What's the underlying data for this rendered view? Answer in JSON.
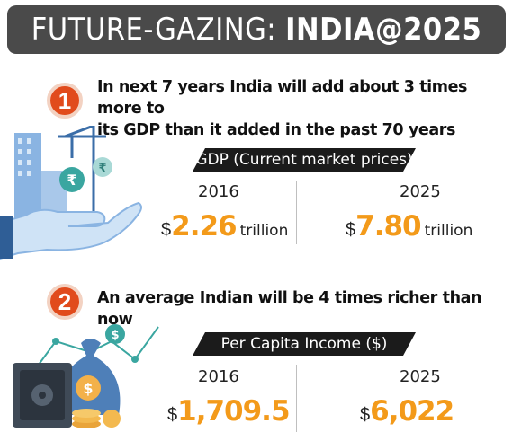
{
  "header": {
    "title_light": "FUTURE-GAZING:",
    "title_bold": "INDIA@2025"
  },
  "points": [
    {
      "number": "1",
      "text_line1": "In next 7 years India will add about 3 times more to",
      "text_line2": "its GDP than it added in the past 70 years",
      "metric": "GDP (Current market prices)",
      "left": {
        "year": "2016",
        "currency": "$",
        "value": "2.26",
        "unit": "trillion"
      },
      "right": {
        "year": "2025",
        "currency": "$",
        "value": "7.80",
        "unit": "trillion"
      }
    },
    {
      "number": "2",
      "text_line1": "An average Indian will be 4 times richer than now",
      "metric": "Per Capita Income ($)",
      "left": {
        "year": "2016",
        "currency": "$",
        "value": "1,709.5"
      },
      "right": {
        "year": "2025",
        "currency": "$",
        "value": "6,022"
      }
    }
  ],
  "icons": {
    "rupee_coin_glyph": "₹",
    "dollar_coin_glyph": "$"
  },
  "colors": {
    "accent_orange": "#f39a1a",
    "badge_red": "#e14b1c",
    "header_bg": "#4a4a4a",
    "tag_bg": "#1b1b1b"
  }
}
